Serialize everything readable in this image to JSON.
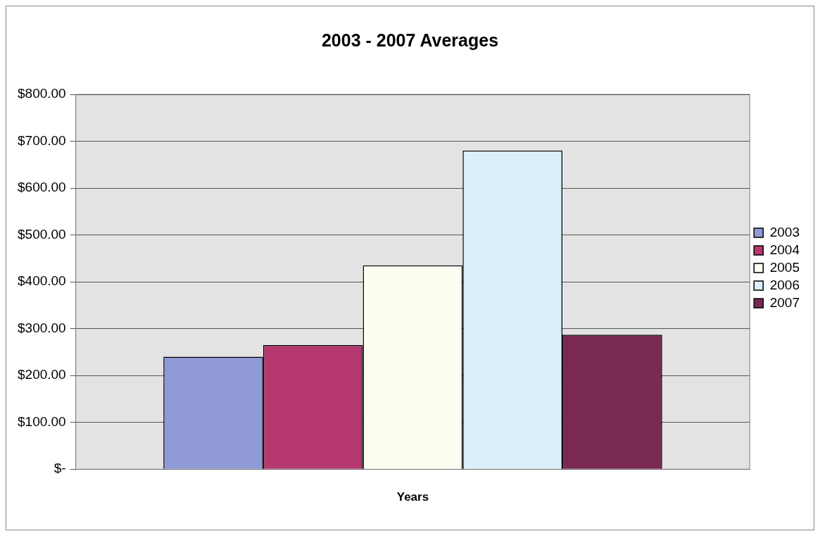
{
  "chart_data": {
    "type": "bar",
    "title": "2003 - 2007 Averages",
    "xlabel": "Years",
    "categories": [
      null
    ],
    "series": [
      {
        "name": "2003",
        "color": "#8f9ad6",
        "values": [
          240
        ]
      },
      {
        "name": "2004",
        "color": "#b5396e",
        "values": [
          265
        ]
      },
      {
        "name": "2005",
        "color": "#fdfdf2",
        "values": [
          435
        ]
      },
      {
        "name": "2006",
        "color": "#dbeffb",
        "values": [
          680
        ]
      },
      {
        "name": "2007",
        "color": "#7a2a52",
        "values": [
          287
        ]
      }
    ],
    "ylim": [
      0,
      800
    ],
    "yticks": [
      {
        "value": 0,
        "label": "$-"
      },
      {
        "value": 100,
        "label": "$100.00"
      },
      {
        "value": 200,
        "label": "$200.00"
      },
      {
        "value": 300,
        "label": "$300.00"
      },
      {
        "value": 400,
        "label": "$400.00"
      },
      {
        "value": 500,
        "label": "$500.00"
      },
      {
        "value": 600,
        "label": "$600.00"
      },
      {
        "value": 700,
        "label": "$700.00"
      },
      {
        "value": 800,
        "label": "$800.00"
      }
    ],
    "grid": "y",
    "legend": "right"
  }
}
